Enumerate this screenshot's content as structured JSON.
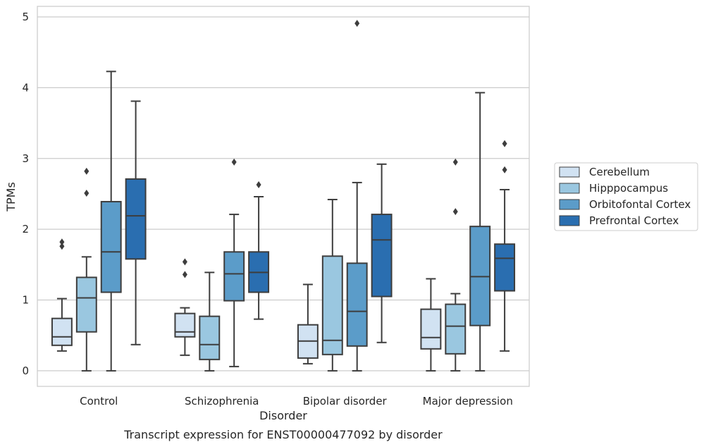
{
  "chart_data": {
    "type": "boxplot",
    "title": "",
    "caption": "Transcript expression for ENST00000477092 by disorder",
    "xlabel": "Disorder",
    "ylabel": "TPMs",
    "ylim": [
      -0.22,
      5.15
    ],
    "yticks": [
      0,
      1,
      2,
      3,
      4,
      5
    ],
    "grid": true,
    "legend_position": "right",
    "categories": [
      "Control",
      "Schizophrenia",
      "Bipolar disorder",
      "Major depression"
    ],
    "series": [
      {
        "name": "Cerebellum",
        "color": "#d1e2f2",
        "boxes": [
          {
            "whislo": 0.28,
            "q1": 0.36,
            "med": 0.48,
            "q3": 0.74,
            "whishi": 1.02,
            "fliers": [
              1.76,
              1.82
            ]
          },
          {
            "whislo": 0.22,
            "q1": 0.48,
            "med": 0.55,
            "q3": 0.81,
            "whishi": 0.89,
            "fliers": [
              1.36,
              1.54
            ]
          },
          {
            "whislo": 0.1,
            "q1": 0.18,
            "med": 0.42,
            "q3": 0.65,
            "whishi": 1.22,
            "fliers": []
          },
          {
            "whislo": 0.0,
            "q1": 0.31,
            "med": 0.47,
            "q3": 0.87,
            "whishi": 1.3,
            "fliers": []
          }
        ]
      },
      {
        "name": "Hipppocampus",
        "color": "#9ac7e0",
        "boxes": [
          {
            "whislo": 0.0,
            "q1": 0.55,
            "med": 1.03,
            "q3": 1.32,
            "whishi": 1.61,
            "fliers": [
              2.51,
              2.82
            ]
          },
          {
            "whislo": 0.0,
            "q1": 0.16,
            "med": 0.37,
            "q3": 0.77,
            "whishi": 1.39,
            "fliers": []
          },
          {
            "whislo": 0.0,
            "q1": 0.23,
            "med": 0.43,
            "q3": 1.62,
            "whishi": 2.42,
            "fliers": []
          },
          {
            "whislo": 0.0,
            "q1": 0.24,
            "med": 0.63,
            "q3": 0.94,
            "whishi": 1.09,
            "fliers": [
              2.25,
              2.95
            ]
          }
        ]
      },
      {
        "name": "Orbitofontal Cortex",
        "color": "#5b9cc9",
        "boxes": [
          {
            "whislo": 0.0,
            "q1": 1.11,
            "med": 1.68,
            "q3": 2.39,
            "whishi": 4.23,
            "fliers": []
          },
          {
            "whislo": 0.06,
            "q1": 0.99,
            "med": 1.37,
            "q3": 1.68,
            "whishi": 2.21,
            "fliers": [
              2.95
            ]
          },
          {
            "whislo": 0.0,
            "q1": 0.35,
            "med": 0.84,
            "q3": 1.52,
            "whishi": 2.66,
            "fliers": [
              4.91
            ]
          },
          {
            "whislo": 0.0,
            "q1": 0.64,
            "med": 1.33,
            "q3": 2.04,
            "whishi": 3.93,
            "fliers": []
          }
        ]
      },
      {
        "name": "Prefrontal Cortex",
        "color": "#2a6eb0",
        "boxes": [
          {
            "whislo": 0.37,
            "q1": 1.58,
            "med": 2.19,
            "q3": 2.71,
            "whishi": 3.81,
            "fliers": []
          },
          {
            "whislo": 0.73,
            "q1": 1.11,
            "med": 1.39,
            "q3": 1.68,
            "whishi": 2.46,
            "fliers": [
              2.63
            ]
          },
          {
            "whislo": 0.4,
            "q1": 1.05,
            "med": 1.85,
            "q3": 2.21,
            "whishi": 2.92,
            "fliers": []
          },
          {
            "whislo": 0.28,
            "q1": 1.13,
            "med": 1.59,
            "q3": 1.79,
            "whishi": 2.56,
            "fliers": [
              2.84,
              3.21
            ]
          }
        ]
      }
    ]
  },
  "colors": {
    "grid": "#cccccc",
    "spine": "#cccccc",
    "box_edge": "#3d3d3d"
  }
}
